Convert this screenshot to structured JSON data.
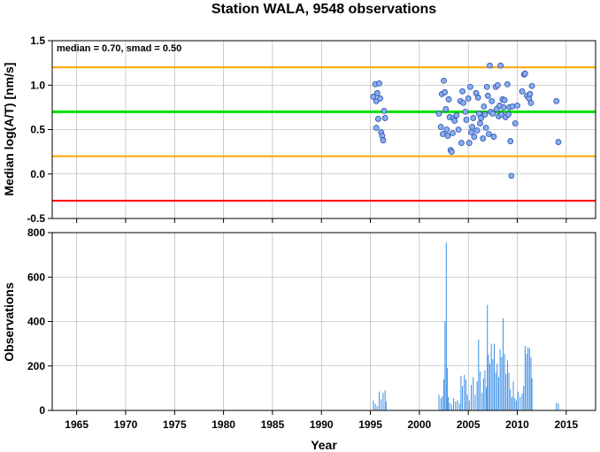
{
  "title": "Station WALA, 9548 observations",
  "chart_data": [
    {
      "type": "scatter",
      "ylabel": "Median log(A/T) [nm/s]",
      "annotation": "median = 0.70, smad = 0.50",
      "xlim": [
        1962.5,
        2018
      ],
      "ylim": [
        -0.5,
        1.5
      ],
      "yticks": [
        "-0.5",
        "0.0",
        "0.5",
        "1.0",
        "1.5"
      ],
      "grid": true,
      "reference_lines": [
        {
          "y": 1.2,
          "color": "#ffa500"
        },
        {
          "y": 0.7,
          "color": "#00e000"
        },
        {
          "y": 0.2,
          "color": "#ffa500"
        },
        {
          "y": -0.3,
          "color": "#ff0000"
        }
      ],
      "marker_color": "#87aef5",
      "points": [
        [
          1995.3,
          0.87
        ],
        [
          1995.5,
          1.01
        ],
        [
          1995.6,
          0.82
        ],
        [
          1995.7,
          0.91
        ],
        [
          1995.8,
          0.62
        ],
        [
          1995.9,
          1.02
        ],
        [
          1995.6,
          0.52
        ],
        [
          1996.0,
          0.85
        ],
        [
          1996.1,
          0.47
        ],
        [
          1996.2,
          0.43
        ],
        [
          1996.3,
          0.38
        ],
        [
          1996.4,
          0.71
        ],
        [
          1996.5,
          0.63
        ],
        [
          2002.0,
          0.68
        ],
        [
          2002.2,
          0.53
        ],
        [
          2002.3,
          0.9
        ],
        [
          2002.4,
          0.45
        ],
        [
          2002.5,
          1.05
        ],
        [
          2002.6,
          0.92
        ],
        [
          2002.7,
          0.73
        ],
        [
          2002.8,
          0.5
        ],
        [
          2002.9,
          0.43
        ],
        [
          2003.0,
          0.84
        ],
        [
          2003.1,
          0.64
        ],
        [
          2003.2,
          0.27
        ],
        [
          2003.3,
          0.25
        ],
        [
          2003.4,
          0.46
        ],
        [
          2003.5,
          0.63
        ],
        [
          2003.6,
          0.6
        ],
        [
          2003.8,
          0.66
        ],
        [
          2004.0,
          0.5
        ],
        [
          2004.2,
          0.82
        ],
        [
          2004.3,
          0.35
        ],
        [
          2004.4,
          0.93
        ],
        [
          2004.5,
          0.8
        ],
        [
          2004.7,
          0.7
        ],
        [
          2004.8,
          0.61
        ],
        [
          2005.0,
          0.85
        ],
        [
          2005.1,
          0.35
        ],
        [
          2005.2,
          0.98
        ],
        [
          2005.3,
          0.47
        ],
        [
          2005.4,
          0.53
        ],
        [
          2005.5,
          0.63
        ],
        [
          2005.6,
          0.42
        ],
        [
          2005.8,
          0.91
        ],
        [
          2005.9,
          0.49
        ],
        [
          2006.0,
          0.86
        ],
        [
          2006.1,
          0.68
        ],
        [
          2006.2,
          0.57
        ],
        [
          2006.3,
          0.63
        ],
        [
          2006.5,
          0.4
        ],
        [
          2006.6,
          0.76
        ],
        [
          2006.7,
          0.67
        ],
        [
          2006.8,
          0.52
        ],
        [
          2006.9,
          0.98
        ],
        [
          2007.0,
          0.88
        ],
        [
          2007.1,
          0.45
        ],
        [
          2007.2,
          1.22
        ],
        [
          2007.3,
          0.7
        ],
        [
          2007.4,
          0.82
        ],
        [
          2007.5,
          0.68
        ],
        [
          2007.6,
          0.42
        ],
        [
          2007.8,
          0.98
        ],
        [
          2007.9,
          0.73
        ],
        [
          2008.0,
          1.0
        ],
        [
          2008.1,
          0.65
        ],
        [
          2008.2,
          0.77
        ],
        [
          2008.3,
          1.22
        ],
        [
          2008.4,
          0.67
        ],
        [
          2008.5,
          0.84
        ],
        [
          2008.6,
          0.75
        ],
        [
          2008.7,
          0.83
        ],
        [
          2008.8,
          0.64
        ],
        [
          2009.0,
          1.01
        ],
        [
          2009.1,
          0.67
        ],
        [
          2009.2,
          0.75
        ],
        [
          2009.3,
          0.37
        ],
        [
          2009.4,
          -0.02
        ],
        [
          2009.5,
          0.76
        ],
        [
          2009.8,
          0.57
        ],
        [
          2010.0,
          0.77
        ],
        [
          2010.5,
          0.93
        ],
        [
          2010.7,
          1.12
        ],
        [
          2010.8,
          1.13
        ],
        [
          2011.0,
          0.88
        ],
        [
          2011.2,
          0.85
        ],
        [
          2011.3,
          0.9
        ],
        [
          2011.5,
          0.99
        ],
        [
          2011.4,
          0.8
        ],
        [
          2014.0,
          0.82
        ],
        [
          2014.2,
          0.36
        ]
      ]
    },
    {
      "type": "bar",
      "ylabel": "Observations",
      "xlabel": "Year",
      "xlim": [
        1962.5,
        2018
      ],
      "ylim": [
        0,
        800
      ],
      "xticks": [
        "1965",
        "1970",
        "1975",
        "1980",
        "1985",
        "1990",
        "1995",
        "2000",
        "2005",
        "2010",
        "2015"
      ],
      "yticks": [
        "0",
        "200",
        "400",
        "600",
        "800"
      ],
      "grid": true,
      "bar_color": "#3a8ee6",
      "bars": [
        [
          1995.3,
          45
        ],
        [
          1995.5,
          30
        ],
        [
          1995.7,
          20
        ],
        [
          1995.9,
          85
        ],
        [
          1996.1,
          50
        ],
        [
          1996.3,
          80
        ],
        [
          1996.5,
          90
        ],
        [
          1996.6,
          40
        ],
        [
          2002.0,
          70
        ],
        [
          2002.2,
          55
        ],
        [
          2002.35,
          65
        ],
        [
          2002.5,
          140
        ],
        [
          2002.62,
          400
        ],
        [
          2002.75,
          755
        ],
        [
          2002.85,
          190
        ],
        [
          2002.95,
          60
        ],
        [
          2003.1,
          35
        ],
        [
          2003.3,
          25
        ],
        [
          2003.5,
          55
        ],
        [
          2003.7,
          40
        ],
        [
          2003.9,
          45
        ],
        [
          2004.1,
          30
        ],
        [
          2004.25,
          155
        ],
        [
          2004.4,
          110
        ],
        [
          2004.6,
          160
        ],
        [
          2004.75,
          140
        ],
        [
          2004.9,
          70
        ],
        [
          2005.1,
          45
        ],
        [
          2005.3,
          115
        ],
        [
          2005.5,
          150
        ],
        [
          2005.7,
          70
        ],
        [
          2005.9,
          130
        ],
        [
          2006.05,
          320
        ],
        [
          2006.2,
          175
        ],
        [
          2006.4,
          80
        ],
        [
          2006.55,
          145
        ],
        [
          2006.7,
          180
        ],
        [
          2006.85,
          105
        ],
        [
          2006.95,
          475
        ],
        [
          2007.05,
          250
        ],
        [
          2007.2,
          210
        ],
        [
          2007.35,
          300
        ],
        [
          2007.5,
          230
        ],
        [
          2007.65,
          300
        ],
        [
          2007.8,
          170
        ],
        [
          2007.95,
          210
        ],
        [
          2008.1,
          150
        ],
        [
          2008.25,
          275
        ],
        [
          2008.4,
          240
        ],
        [
          2008.55,
          415
        ],
        [
          2008.7,
          255
        ],
        [
          2008.85,
          165
        ],
        [
          2009.0,
          225
        ],
        [
          2009.15,
          170
        ],
        [
          2009.3,
          95
        ],
        [
          2009.45,
          60
        ],
        [
          2009.6,
          130
        ],
        [
          2009.75,
          55
        ],
        [
          2009.9,
          45
        ],
        [
          2010.1,
          85
        ],
        [
          2010.3,
          60
        ],
        [
          2010.5,
          75
        ],
        [
          2010.65,
          110
        ],
        [
          2010.8,
          290
        ],
        [
          2010.95,
          255
        ],
        [
          2011.1,
          285
        ],
        [
          2011.25,
          280
        ],
        [
          2011.4,
          240
        ],
        [
          2011.5,
          145
        ],
        [
          2014.0,
          35
        ],
        [
          2014.2,
          30
        ]
      ]
    }
  ]
}
